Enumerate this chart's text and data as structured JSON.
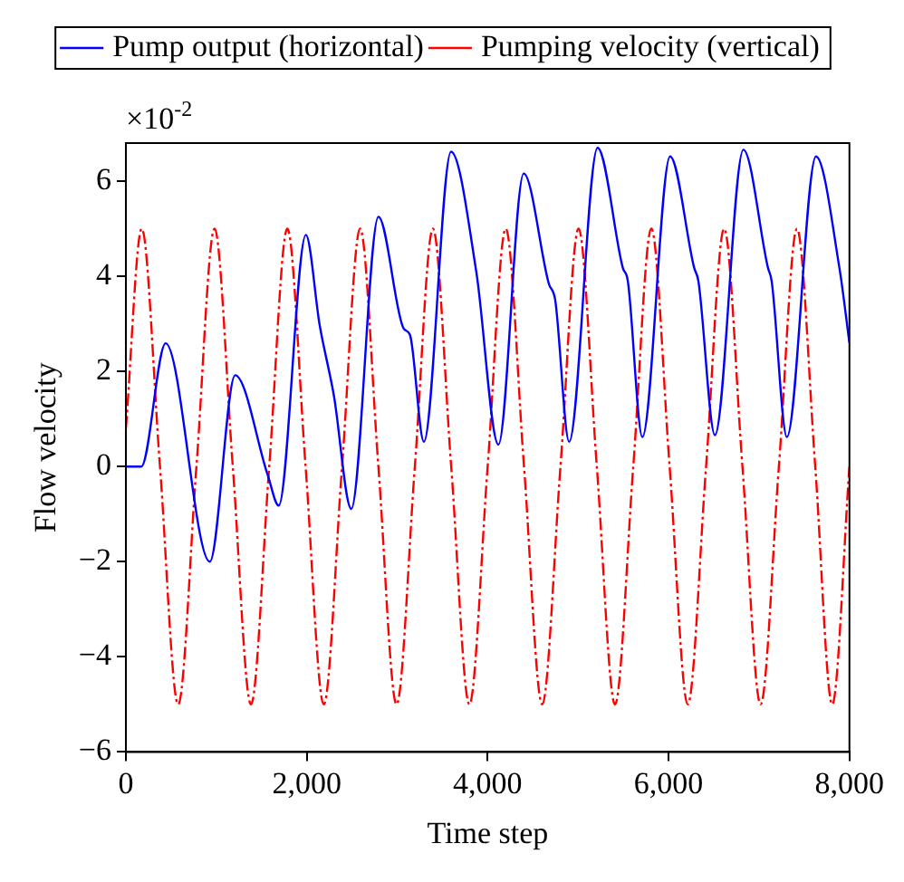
{
  "chart_data": {
    "type": "line",
    "xlabel": "Time step",
    "ylabel": "Flow velocity",
    "annotations": [
      "×10$^{-2}$"
    ],
    "xlim": [
      0,
      8000
    ],
    "xticks": [
      0,
      {
        "value": 2000,
        "label": "2,000"
      },
      {
        "value": 4000,
        "label": "4,000"
      },
      {
        "value": 6000,
        "label": "6,000"
      },
      {
        "value": 8000,
        "label": "8,000"
      }
    ],
    "ylim": [
      -6,
      6.8
    ],
    "yticks": [
      {
        "value": -6,
        "label": "−6"
      },
      {
        "value": -4,
        "label": "−4"
      },
      {
        "value": -2,
        "label": "−2"
      },
      0,
      2,
      4,
      6
    ],
    "grid": false,
    "legend": "top",
    "marker": "none",
    "series": [
      {
        "name": "Pump output (horizontal)",
        "color": "#0000ff",
        "line_style": "solid",
        "x": [
          0,
          170,
          440,
          928,
          1208,
          1570,
          1690,
          1990,
          2143,
          2300,
          2492,
          2792,
          3072,
          3141,
          3295,
          3595,
          3874,
          4119,
          4398,
          4677,
          4747,
          4901,
          5215,
          5494,
          5550,
          5711,
          6017,
          6283,
          6330,
          6513,
          6827,
          7099,
          7140,
          7309,
          7630,
          7889,
          8000
        ],
        "values": [
          0,
          0,
          2.59,
          -2,
          1.92,
          -0.19,
          -0.82,
          4.87,
          2.97,
          1.49,
          -0.89,
          5.25,
          2.9,
          2.77,
          0.52,
          6.62,
          4.1,
          0.46,
          6.16,
          3.84,
          3.5,
          0.52,
          6.7,
          4.18,
          3.9,
          0.62,
          6.52,
          4.18,
          3.9,
          0.66,
          6.66,
          4.18,
          3.9,
          0.62,
          6.52,
          4.18,
          2.6
        ]
      },
      {
        "name": "Pumping velocity (vertical)",
        "color": "#ff0000",
        "line_style": "dashed",
        "x": [
          0,
          175,
          377,
          578,
          780,
          980,
          1182,
          1383,
          1585,
          1785,
          1987,
          2188,
          2390,
          2590,
          2792,
          2993,
          3195,
          3395,
          3597,
          3798,
          4000,
          4200,
          4402,
          4603,
          4805,
          5005,
          5207,
          5408,
          5610,
          5810,
          6012,
          6213,
          6415,
          6615,
          6817,
          7018,
          7220,
          7420,
          7622,
          7810,
          8000
        ],
        "values": [
          0.8,
          5,
          0,
          -5,
          0,
          5,
          0,
          -5,
          0,
          5,
          0,
          -5,
          0,
          5,
          0,
          -5,
          0,
          5,
          0,
          -5,
          0,
          5,
          0,
          -5,
          0,
          5,
          0,
          -5,
          0,
          5,
          0,
          -5,
          0,
          5,
          0,
          -5,
          0,
          5,
          0,
          -5,
          0
        ]
      }
    ]
  }
}
